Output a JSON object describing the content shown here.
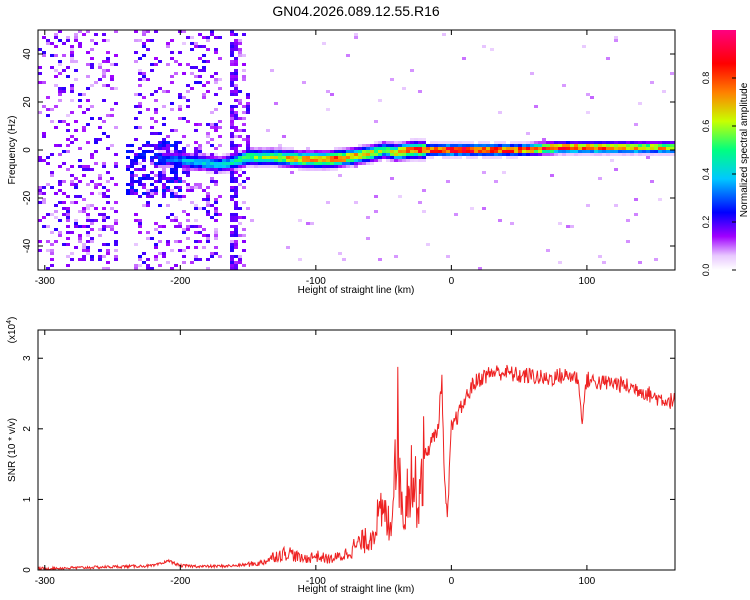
{
  "title": "GN04.2026.089.12.55.R16",
  "chart_data": [
    {
      "type": "heatmap",
      "title": "GN04.2026.089.12.55.R16",
      "xlabel": "Height of straight line (km)",
      "ylabel": "Frequency (Hz)",
      "xlim": [
        -305,
        165
      ],
      "ylim": [
        -50,
        50
      ],
      "x_ticks": [
        -300,
        -200,
        -100,
        0,
        100
      ],
      "y_ticks": [
        -40,
        -20,
        0,
        20,
        40
      ],
      "colorbar": {
        "label": "Normalized spectral amplitude",
        "range": [
          0,
          1
        ],
        "ticks": [
          0.0,
          0.2,
          0.4,
          0.6,
          0.8
        ],
        "tick_labels": [
          "0.0",
          "0.2",
          "0.4",
          "0.6",
          "0.8"
        ],
        "colormap": [
          "#ffffff",
          "#a000ff",
          "#0000ff",
          "#00c8ff",
          "#00ff80",
          "#c8ff00",
          "#ff8000",
          "#ff0000",
          "#ff0080"
        ]
      },
      "ridge": {
        "x": [
          -205,
          -190,
          -170,
          -160,
          -150,
          -130,
          -110,
          -90,
          -75,
          -65,
          -55,
          -50,
          -40,
          -30,
          -20,
          -10,
          0,
          20,
          50,
          80,
          100,
          130,
          165
        ],
        "frequency_hz": [
          -4,
          -5,
          -6,
          -5,
          -3,
          -3,
          -4,
          -4,
          -3,
          -2,
          -1,
          0,
          -1,
          0,
          0,
          0,
          0,
          0,
          0,
          1,
          1,
          1,
          1
        ],
        "peak_amplitude": [
          0.3,
          0.4,
          0.4,
          0.45,
          0.55,
          0.6,
          0.75,
          0.8,
          0.75,
          0.7,
          0.6,
          0.55,
          0.7,
          0.8,
          0.85,
          0.9,
          0.95,
          0.9,
          0.85,
          0.85,
          0.8,
          0.75,
          0.7
        ]
      },
      "noise_region_x": [
        -305,
        -150
      ]
    },
    {
      "type": "line",
      "xlabel": "Height of straight line (km)",
      "ylabel": "SNR (10 * v/v)",
      "y_multiplier": "(x10",
      "y_multiplier_exp": "4",
      "y_multiplier_close": ")",
      "xlim": [
        -305,
        165
      ],
      "ylim": [
        0,
        3.4
      ],
      "x_ticks": [
        -300,
        -200,
        -100,
        0,
        100
      ],
      "y_ticks": [
        0,
        1,
        2,
        3
      ],
      "series": [
        {
          "color": "#ee2222",
          "x": [
            -305,
            -280,
            -260,
            -240,
            -220,
            -212,
            -210,
            -200,
            -180,
            -160,
            -140,
            -130,
            -120,
            -110,
            -100,
            -90,
            -80,
            -70,
            -60,
            -55,
            -50,
            -45,
            -42,
            -40,
            -38,
            -35,
            -30,
            -25,
            -20,
            -15,
            -10,
            -7,
            -5,
            -3,
            0,
            5,
            10,
            15,
            20,
            25,
            30,
            35,
            40,
            50,
            60,
            70,
            80,
            90,
            94,
            96,
            100,
            110,
            120,
            130,
            140,
            150,
            160,
            165
          ],
          "y": [
            0.02,
            0.03,
            0.04,
            0.05,
            0.06,
            0.1,
            0.14,
            0.06,
            0.05,
            0.06,
            0.1,
            0.2,
            0.25,
            0.15,
            0.2,
            0.15,
            0.2,
            0.35,
            0.45,
            0.7,
            0.8,
            0.6,
            1.5,
            2.3,
            1.2,
            0.8,
            1.4,
            1.0,
            1.6,
            1.8,
            2.0,
            2.7,
            1.2,
            0.7,
            2.0,
            2.2,
            2.4,
            2.6,
            2.7,
            2.75,
            2.8,
            2.8,
            2.8,
            2.75,
            2.75,
            2.7,
            2.75,
            2.75,
            2.7,
            2.1,
            2.7,
            2.65,
            2.65,
            2.6,
            2.55,
            2.45,
            2.4,
            2.4
          ]
        }
      ]
    }
  ]
}
